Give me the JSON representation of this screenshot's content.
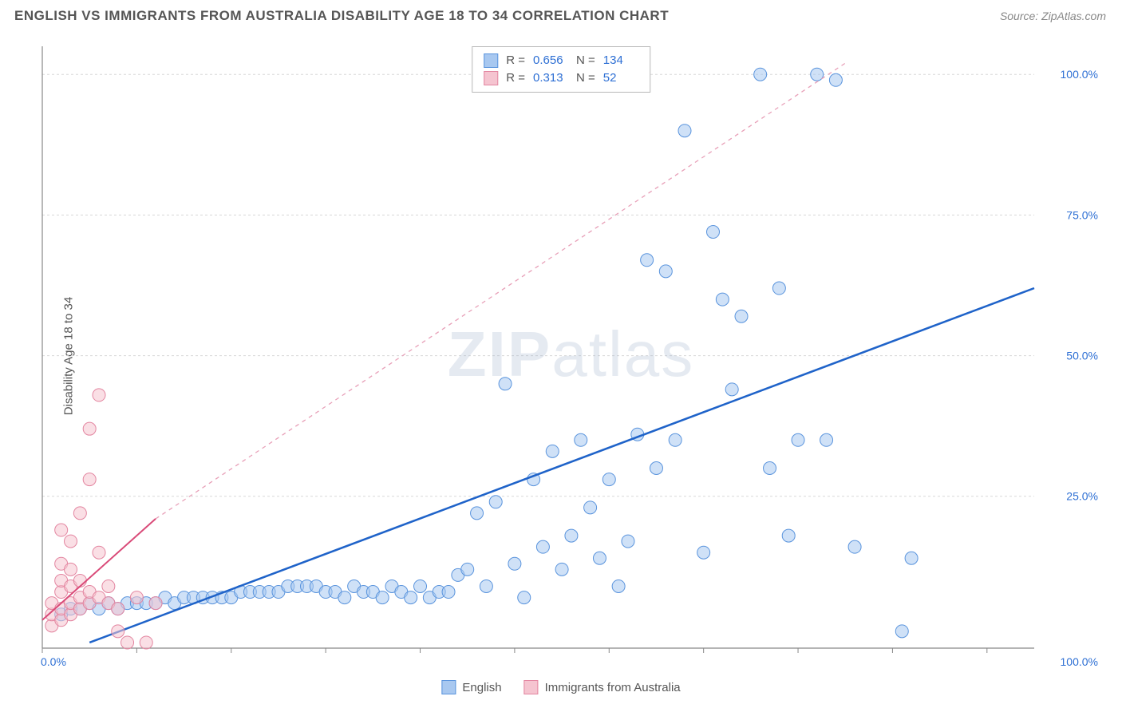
{
  "header": {
    "title": "ENGLISH VS IMMIGRANTS FROM AUSTRALIA DISABILITY AGE 18 TO 34 CORRELATION CHART",
    "source": "Source: ZipAtlas.com"
  },
  "y_axis_label": "Disability Age 18 to 34",
  "watermark": {
    "part1": "ZIP",
    "part2": "atlas"
  },
  "chart": {
    "type": "scatter",
    "background_color": "#ffffff",
    "plot_border_color": "#888888",
    "grid_color": "#d8d8d8",
    "xlim": [
      0,
      105
    ],
    "ylim": [
      -2,
      105
    ],
    "x_ticks": [
      0,
      10,
      20,
      30,
      40,
      50,
      60,
      70,
      80,
      90,
      100
    ],
    "y_ticks": [
      25,
      50,
      75,
      100
    ],
    "x_tick_labels": {
      "0": "0.0%",
      "100": "100.0%"
    },
    "y_tick_labels": {
      "25": "25.0%",
      "50": "50.0%",
      "75": "75.0%",
      "100": "100.0%"
    },
    "tick_label_color": "#2d6fd4",
    "tick_label_fontsize": 14,
    "marker_radius": 8,
    "marker_opacity": 0.55,
    "series": [
      {
        "name": "English",
        "color_fill": "#a8c8f0",
        "color_stroke": "#5a94dd",
        "trendline": {
          "x1": 5,
          "y1": -1,
          "x2": 105,
          "y2": 62,
          "color": "#1f63c9",
          "width": 2.5,
          "dash": "none"
        },
        "points": [
          [
            2,
            4
          ],
          [
            3,
            5
          ],
          [
            4,
            5
          ],
          [
            5,
            6
          ],
          [
            6,
            5
          ],
          [
            7,
            6
          ],
          [
            8,
            5
          ],
          [
            9,
            6
          ],
          [
            10,
            6
          ],
          [
            11,
            6
          ],
          [
            12,
            6
          ],
          [
            13,
            7
          ],
          [
            14,
            6
          ],
          [
            15,
            7
          ],
          [
            16,
            7
          ],
          [
            17,
            7
          ],
          [
            18,
            7
          ],
          [
            19,
            7
          ],
          [
            20,
            7
          ],
          [
            21,
            8
          ],
          [
            22,
            8
          ],
          [
            23,
            8
          ],
          [
            24,
            8
          ],
          [
            25,
            8
          ],
          [
            26,
            9
          ],
          [
            27,
            9
          ],
          [
            28,
            9
          ],
          [
            29,
            9
          ],
          [
            30,
            8
          ],
          [
            31,
            8
          ],
          [
            32,
            7
          ],
          [
            33,
            9
          ],
          [
            34,
            8
          ],
          [
            35,
            8
          ],
          [
            36,
            7
          ],
          [
            37,
            9
          ],
          [
            38,
            8
          ],
          [
            39,
            7
          ],
          [
            40,
            9
          ],
          [
            41,
            7
          ],
          [
            42,
            8
          ],
          [
            43,
            8
          ],
          [
            44,
            11
          ],
          [
            45,
            12
          ],
          [
            46,
            22
          ],
          [
            47,
            9
          ],
          [
            48,
            24
          ],
          [
            49,
            45
          ],
          [
            50,
            13
          ],
          [
            51,
            7
          ],
          [
            52,
            28
          ],
          [
            53,
            16
          ],
          [
            54,
            33
          ],
          [
            55,
            12
          ],
          [
            56,
            18
          ],
          [
            57,
            35
          ],
          [
            58,
            23
          ],
          [
            59,
            14
          ],
          [
            60,
            28
          ],
          [
            61,
            9
          ],
          [
            62,
            17
          ],
          [
            63,
            36
          ],
          [
            64,
            67
          ],
          [
            65,
            30
          ],
          [
            66,
            65
          ],
          [
            67,
            35
          ],
          [
            68,
            90
          ],
          [
            70,
            15
          ],
          [
            71,
            72
          ],
          [
            72,
            60
          ],
          [
            73,
            44
          ],
          [
            74,
            57
          ],
          [
            76,
            100
          ],
          [
            77,
            30
          ],
          [
            78,
            62
          ],
          [
            79,
            18
          ],
          [
            80,
            35
          ],
          [
            82,
            100
          ],
          [
            83,
            35
          ],
          [
            84,
            99
          ],
          [
            86,
            16
          ],
          [
            91,
            1
          ],
          [
            92,
            14
          ]
        ]
      },
      {
        "name": "Immigrants from Australia",
        "color_fill": "#f5c4d0",
        "color_stroke": "#e385a0",
        "trendline": {
          "x1": 0,
          "y1": 3,
          "x2": 12,
          "y2": 21,
          "color": "#d94a78",
          "width": 2,
          "dash": "none"
        },
        "trendline_dashed": {
          "x1": 12,
          "y1": 21,
          "x2": 85,
          "y2": 102,
          "color": "#e8a0b8",
          "width": 1.3,
          "dash": "5,5"
        },
        "points": [
          [
            1,
            2
          ],
          [
            1,
            4
          ],
          [
            1,
            6
          ],
          [
            2,
            3
          ],
          [
            2,
            5
          ],
          [
            2,
            8
          ],
          [
            2,
            10
          ],
          [
            2,
            13
          ],
          [
            2,
            19
          ],
          [
            3,
            4
          ],
          [
            3,
            6
          ],
          [
            3,
            9
          ],
          [
            3,
            12
          ],
          [
            3,
            17
          ],
          [
            4,
            5
          ],
          [
            4,
            7
          ],
          [
            4,
            10
          ],
          [
            4,
            22
          ],
          [
            5,
            6
          ],
          [
            5,
            8
          ],
          [
            5,
            28
          ],
          [
            5,
            37
          ],
          [
            6,
            7
          ],
          [
            6,
            15
          ],
          [
            6,
            43
          ],
          [
            7,
            6
          ],
          [
            7,
            9
          ],
          [
            8,
            1
          ],
          [
            8,
            5
          ],
          [
            9,
            -1
          ],
          [
            10,
            7
          ],
          [
            11,
            -1
          ],
          [
            12,
            6
          ]
        ]
      }
    ]
  },
  "stats_box": {
    "rows": [
      {
        "swatch_fill": "#a8c8f0",
        "swatch_stroke": "#5a94dd",
        "r_label": "R =",
        "r": "0.656",
        "n_label": "N =",
        "n": "134"
      },
      {
        "swatch_fill": "#f5c4d0",
        "swatch_stroke": "#e385a0",
        "r_label": "R =",
        "r": "0.313",
        "n_label": "N =",
        "n": "52"
      }
    ]
  },
  "bottom_legend": {
    "items": [
      {
        "swatch_fill": "#a8c8f0",
        "swatch_stroke": "#5a94dd",
        "label": "English"
      },
      {
        "swatch_fill": "#f5c4d0",
        "swatch_stroke": "#e385a0",
        "label": "Immigrants from Australia"
      }
    ]
  }
}
